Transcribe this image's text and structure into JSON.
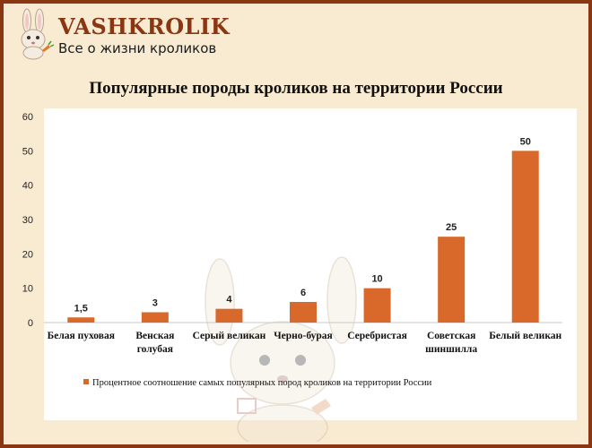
{
  "brand": {
    "name": "VASHKROLIK",
    "tagline": "Все о жизни кроликов"
  },
  "colors": {
    "frame": "#8a3612",
    "background": "#f8ebd2",
    "bar": "#d9692a"
  },
  "chart_data": {
    "type": "bar",
    "title": "Популярные породы кроликов на территории России",
    "categories": [
      "Белая пуховая",
      "Венская голубая",
      "Серый великан",
      "Черно-бурая",
      "Серебристая",
      "Советская шиншилла",
      "Белый великан"
    ],
    "series": [
      {
        "name": "Процентное соотношение самых популярных пород кроликов на территории России",
        "values": [
          1.5,
          3,
          4,
          6,
          10,
          25,
          50
        ],
        "labels": [
          "1,5",
          "3",
          "4",
          "6",
          "10",
          "25",
          "50"
        ]
      }
    ],
    "ylim": [
      0,
      60
    ],
    "yticks": [
      0,
      10,
      20,
      30,
      40,
      50,
      60
    ],
    "grid": false,
    "legend": "bottom"
  }
}
